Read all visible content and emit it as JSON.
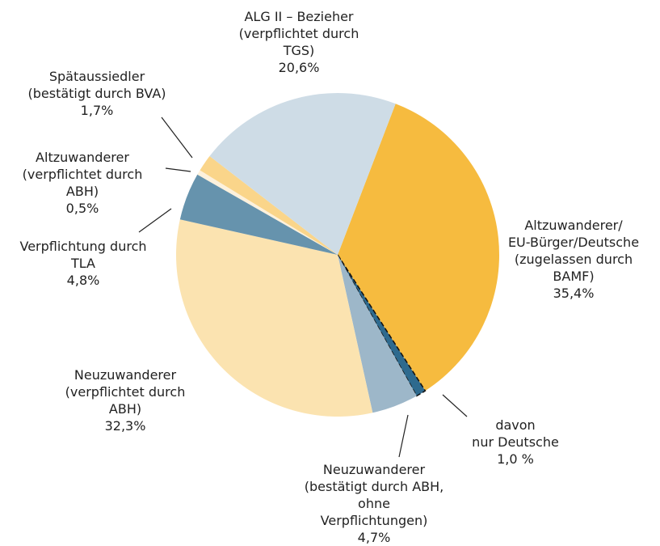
{
  "chart_data": {
    "type": "pie",
    "startangle": 21,
    "categories": [
      "Altzuwanderer/\nEU-Bürger/Deutsche\n(zugelassen durch\nBAMF)",
      "davon\nnur Deutsche",
      "Neuzuwanderer\n(bestätigt durch ABH,\nohne\nVerpflichtungen)",
      "Neuzuwanderer\n(verpflichtet durch\nABH)",
      "Verpflichtung durch\nTLA",
      "Altzuwanderer\n(verpflichtet durch\nABH)",
      "Spätaussiedler\n(bestätigt durch BVA)",
      "ALG II – Bezieher\n(verpflichtet durch\nTGS)"
    ],
    "values": [
      35.4,
      1.0,
      4.7,
      32.3,
      4.8,
      0.5,
      1.7,
      20.6
    ],
    "value_labels": [
      "35,4%",
      "1,0 %",
      "4,7%",
      "32,3%",
      "4,8%",
      "0,5%",
      "1,7%",
      "20,6%"
    ],
    "colors": [
      "#f6bb3f",
      "#2e6a8e",
      "#9db7c9",
      "#fbe3b0",
      "#6693ad",
      "#fdf1dc",
      "#fad58a",
      "#cedce6"
    ]
  }
}
